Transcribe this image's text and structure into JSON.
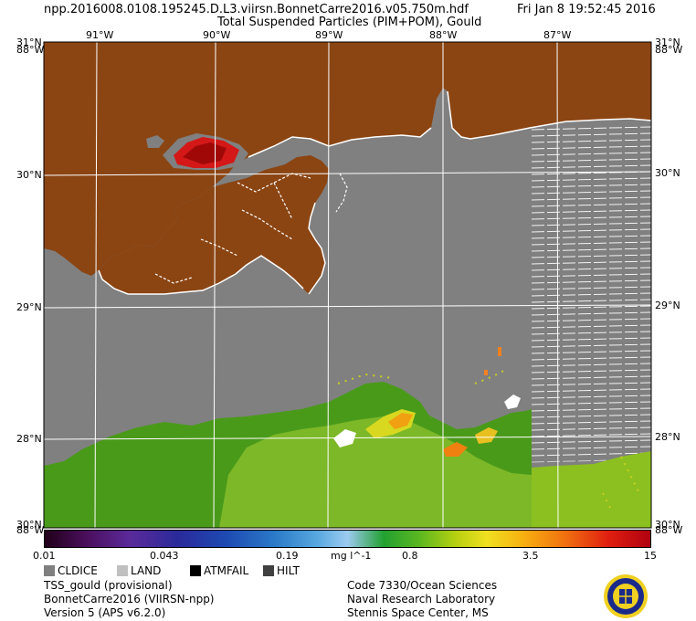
{
  "header": {
    "filename": "npp.2016008.0108.195245.D.L3.viirsn.BonnetCarre2016.v05.750m.hdf",
    "product": "Total Suspended Particles (PIM+POM), Gould",
    "datetime": "Fri Jan  8 19:52:45 2016"
  },
  "map": {
    "lon_labels": [
      "91°W",
      "90°W",
      "89°W",
      "88°W",
      "87°W"
    ],
    "lat_labels": [
      "30°N",
      "29°N",
      "28°N"
    ],
    "corner_labels": {
      "top_left_lat": "31°N",
      "top_left_lon": "88°W",
      "top_right_lat": "31°N",
      "top_right_lon": "88°W",
      "bottom_left_lat": "30°N",
      "bottom_left_lon": "88°W",
      "bottom_right_lat": "30°N",
      "bottom_right_lon": "88°W"
    },
    "colors": {
      "land": "#8b4513",
      "ocean_missing": "#808080",
      "coastline": "#ffffff",
      "grid": "#ffffff",
      "cloud_ice": "#ffffff"
    }
  },
  "colorbar": {
    "ticks": [
      "0.01",
      "0.043",
      "0.19",
      "mg l^-1",
      "0.8",
      "3.5",
      "15"
    ]
  },
  "legend": {
    "items": [
      {
        "label": "CLDICE",
        "color": "#7f7f7f"
      },
      {
        "label": "LAND",
        "color": "#c0c0c0"
      },
      {
        "label": "ATMFAIL",
        "color": "#000000"
      },
      {
        "label": "HILT",
        "color": "#404040"
      }
    ]
  },
  "footer": {
    "left": [
      "TSS_gould (provisional)",
      "BonnetCarre2016 (VIIRSN-npp)",
      "Version 5 (APS v6.2.0)"
    ],
    "right": [
      "Code 7330/Ocean Sciences",
      "Naval Research Laboratory",
      "Stennis Space Center, MS"
    ]
  }
}
